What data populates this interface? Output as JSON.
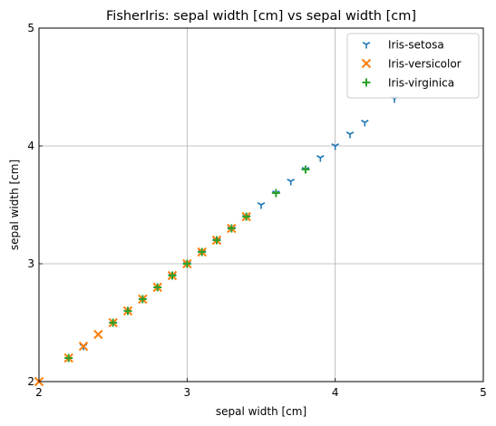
{
  "chart_data": {
    "type": "scatter",
    "title": "FisherIris: sepal width [cm] vs sepal width [cm]",
    "xlabel": "sepal width [cm]",
    "ylabel": "sepal width [cm]",
    "xlim": [
      2,
      5
    ],
    "ylim": [
      2,
      5
    ],
    "xticks": [
      "2",
      "3",
      "4",
      "5"
    ],
    "yticks": [
      "2",
      "3",
      "4",
      "5"
    ],
    "grid": true,
    "legend_position": "top-right",
    "series": [
      {
        "name": "Iris-setosa",
        "marker": "tri-down",
        "color": "#1f77b4",
        "values": [
          2.3,
          2.9,
          3.0,
          3.1,
          3.2,
          3.3,
          3.4,
          3.5,
          3.6,
          3.7,
          3.8,
          3.9,
          4.0,
          4.1,
          4.2,
          4.4
        ]
      },
      {
        "name": "Iris-versicolor",
        "marker": "x",
        "color": "#ff7f0e",
        "values": [
          2.0,
          2.2,
          2.3,
          2.4,
          2.5,
          2.6,
          2.7,
          2.8,
          2.9,
          3.0,
          3.1,
          3.2,
          3.3,
          3.4
        ]
      },
      {
        "name": "Iris-virginica",
        "marker": "plus",
        "color": "#2ca02c",
        "values": [
          2.2,
          2.5,
          2.6,
          2.7,
          2.8,
          2.9,
          3.0,
          3.1,
          3.2,
          3.3,
          3.4,
          3.6,
          3.8
        ]
      }
    ]
  }
}
